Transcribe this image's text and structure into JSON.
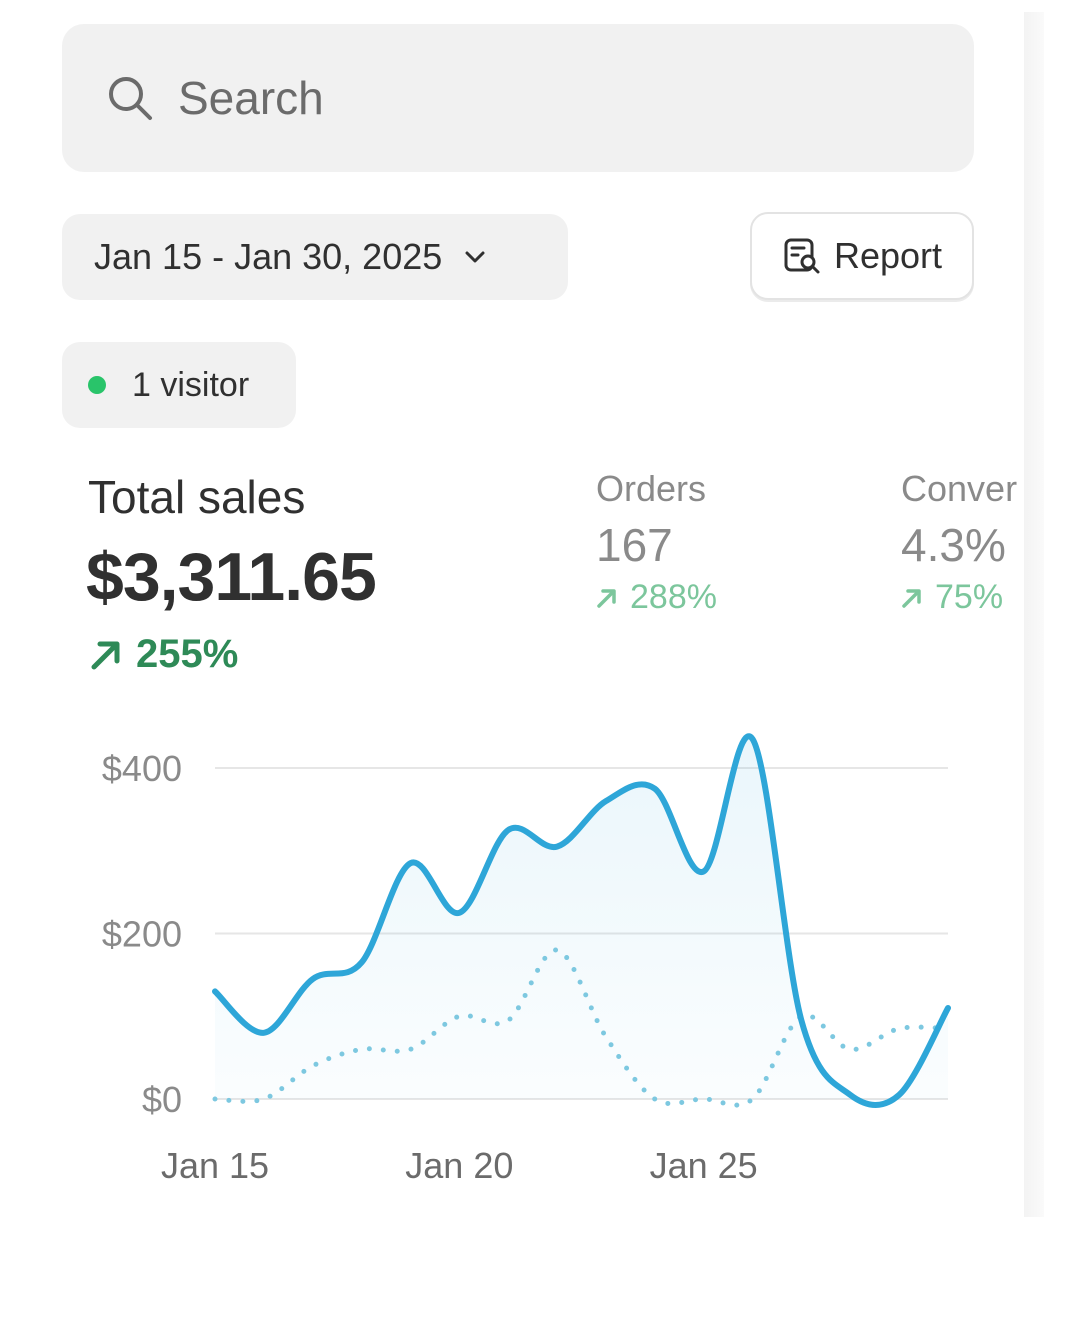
{
  "search": {
    "placeholder": "Search",
    "icon": "search-icon"
  },
  "date_range": {
    "label": "Jan 15 - Jan 30, 2025",
    "icon": "chevron-down-icon"
  },
  "report": {
    "label": "Report",
    "icon": "report-search-icon"
  },
  "visitors": {
    "label": "1 visitor",
    "dot_color": "#29c46a"
  },
  "metrics": {
    "total_sales": {
      "label": "Total sales",
      "value": "$3,311.65",
      "change": "255%"
    },
    "orders": {
      "label": "Orders",
      "value": "167",
      "change": "288%"
    },
    "conversion": {
      "label": "Conver",
      "value": "4.3%",
      "change": "75%"
    }
  },
  "colors": {
    "primary_line": "#2ea6d8",
    "comparison_line": "#7dc8e0",
    "positive": "#2e8a57",
    "positive_muted": "#7cc69c"
  },
  "chart_data": {
    "type": "line",
    "ylim": [
      0,
      400
    ],
    "y_ticks": [
      "$0",
      "$200",
      "$400"
    ],
    "x_tick_labels": [
      "Jan 15",
      "Jan 20",
      "Jan 25"
    ],
    "x": [
      "Jan 15",
      "Jan 16",
      "Jan 17",
      "Jan 18",
      "Jan 19",
      "Jan 20",
      "Jan 21",
      "Jan 22",
      "Jan 23",
      "Jan 24",
      "Jan 25",
      "Jan 26",
      "Jan 27",
      "Jan 28",
      "Jan 29",
      "Jan 30"
    ],
    "series": [
      {
        "style": "solid",
        "values": [
          130,
          80,
          145,
          165,
          285,
          225,
          325,
          305,
          360,
          375,
          275,
          435,
          95,
          5,
          5,
          110
        ]
      },
      {
        "style": "dotted",
        "values": [
          0,
          0,
          40,
          60,
          60,
          100,
          95,
          180,
          75,
          0,
          0,
          0,
          100,
          60,
          85,
          85
        ]
      }
    ]
  }
}
